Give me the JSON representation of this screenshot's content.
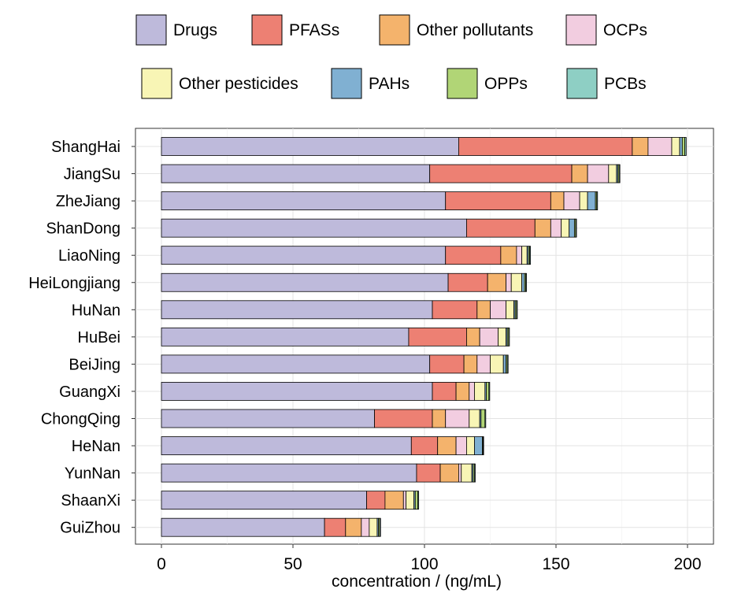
{
  "chart_data": {
    "type": "bar",
    "orientation": "horizontal",
    "stacked": true,
    "xlabel": "concentration / (ng/mL)",
    "ylabel": "",
    "xlim": [
      0,
      200
    ],
    "x_ticks": [
      0,
      50,
      100,
      150,
      200
    ],
    "grid": true,
    "legend_position": "top",
    "categories": [
      "ShangHai",
      "JiangSu",
      "ZheJiang",
      "ShanDong",
      "LiaoNing",
      "HeiLongjiang",
      "HuNan",
      "HuBei",
      "BeiJing",
      "GuangXi",
      "ChongQing",
      "HeNan",
      "YunNan",
      "ShaanXi",
      "GuiZhou"
    ],
    "series": [
      {
        "name": "Drugs",
        "color": "#bebadb",
        "values": [
          113,
          102,
          108,
          116,
          108,
          109,
          103,
          94,
          102,
          103,
          81,
          95,
          97,
          78,
          62
        ]
      },
      {
        "name": "PFASs",
        "color": "#ed8073",
        "values": [
          66,
          54,
          40,
          26,
          21,
          15,
          17,
          22,
          13,
          9,
          22,
          10,
          9,
          7,
          8
        ]
      },
      {
        "name": "Other pollutants",
        "color": "#f4b36c",
        "values": [
          6,
          6,
          5,
          6,
          6,
          7,
          5,
          5,
          5,
          5,
          5,
          7,
          7,
          7,
          6
        ]
      },
      {
        "name": "OCPs",
        "color": "#f2cde0",
        "values": [
          9,
          8,
          6,
          4,
          2,
          2,
          6,
          7,
          5,
          2,
          9,
          4,
          1,
          1,
          3
        ]
      },
      {
        "name": "Other pesticides",
        "color": "#f8f5b5",
        "values": [
          3,
          3,
          3,
          3,
          2,
          4,
          3,
          3,
          5,
          4,
          4,
          3,
          4,
          3,
          3
        ]
      },
      {
        "name": "PAHs",
        "color": "#80b0d2",
        "values": [
          1,
          0.5,
          3,
          2,
          0.5,
          1,
          0.5,
          0.5,
          1,
          0.5,
          0.5,
          3,
          0.5,
          0.5,
          0.5
        ]
      },
      {
        "name": "OPPs",
        "color": "#b1d576",
        "values": [
          1,
          0.5,
          0.5,
          0.5,
          0.5,
          0.5,
          0.5,
          0.5,
          0.5,
          1,
          1.5,
          0.3,
          0.5,
          1,
          0.5
        ]
      },
      {
        "name": "PCBs",
        "color": "#8ecfc4",
        "values": [
          0.5,
          0.3,
          0.3,
          0.3,
          0.3,
          0.3,
          0.3,
          0.3,
          0.3,
          0.3,
          0.3,
          0.2,
          0.3,
          0.3,
          0.3
        ]
      }
    ]
  }
}
